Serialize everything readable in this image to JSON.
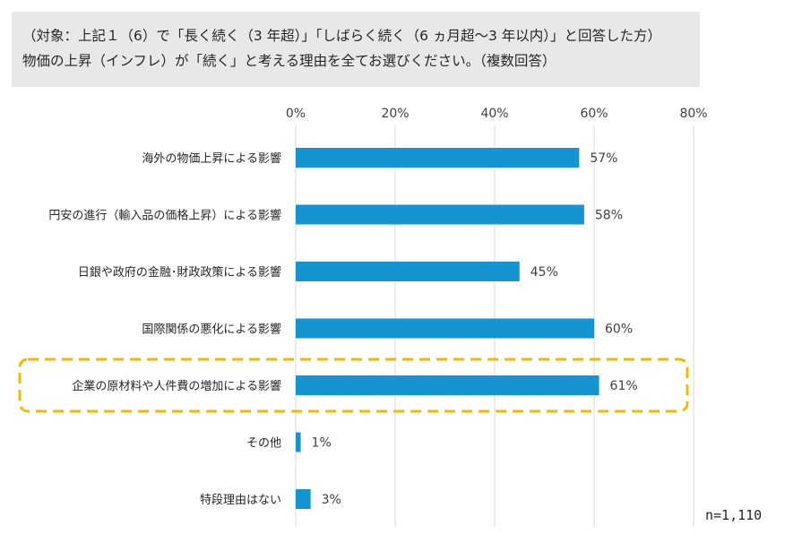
{
  "header": {
    "line1": "（対象：上記１（6）で「長く続く（3 年超）」「しばらく続く（6 ヵ月超～3 年以内）」と回答した方）",
    "line2": "物価の上昇（インフレ）が「続く」と考える理由を全てお選びください。（複数回答）"
  },
  "sample_size": "n=1,110",
  "chart_data": {
    "type": "bar",
    "orientation": "horizontal",
    "categories": [
      "海外の物価上昇による影響",
      "円安の進行（輸入品の価格上昇）による影響",
      "日銀や政府の金融･財政政策による影響",
      "国際関係の悪化による影響",
      "企業の原材料や人件費の増加による影響",
      "その他",
      "特段理由はない"
    ],
    "values": [
      57,
      58,
      45,
      60,
      61,
      1,
      3
    ],
    "value_labels": [
      "57%",
      "58%",
      "45%",
      "60%",
      "61%",
      "1%",
      "3%"
    ],
    "ticks": [
      "0%",
      "20%",
      "40%",
      "60%",
      "80%"
    ],
    "tick_values": [
      0,
      20,
      40,
      60,
      80
    ],
    "xlim": [
      0,
      80
    ],
    "axis_position": "top",
    "grid": true,
    "highlighted_category": "企業の原材料や人件費の増加による影響",
    "colors": {
      "bar": "#1494d1",
      "gridline": "#d9d9d9",
      "highlight_border": "#f5b800",
      "header_bg": "#e8e8e8"
    }
  }
}
